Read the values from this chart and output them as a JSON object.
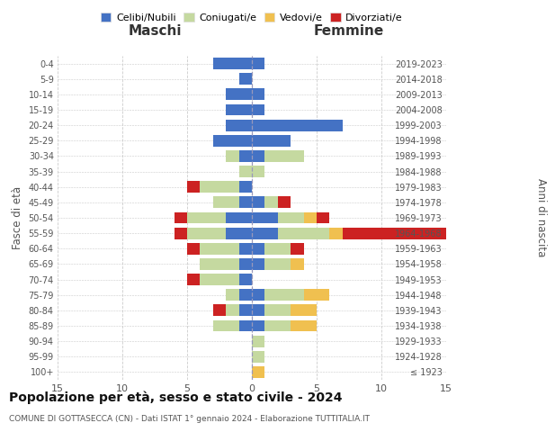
{
  "age_groups": [
    "100+",
    "95-99",
    "90-94",
    "85-89",
    "80-84",
    "75-79",
    "70-74",
    "65-69",
    "60-64",
    "55-59",
    "50-54",
    "45-49",
    "40-44",
    "35-39",
    "30-34",
    "25-29",
    "20-24",
    "15-19",
    "10-14",
    "5-9",
    "0-4"
  ],
  "birth_years": [
    "≤ 1923",
    "1924-1928",
    "1929-1933",
    "1934-1938",
    "1939-1943",
    "1944-1948",
    "1949-1953",
    "1954-1958",
    "1959-1963",
    "1964-1968",
    "1969-1973",
    "1974-1978",
    "1979-1983",
    "1984-1988",
    "1989-1993",
    "1994-1998",
    "1999-2003",
    "2004-2008",
    "2009-2013",
    "2014-2018",
    "2019-2023"
  ],
  "colors": {
    "celibi": "#4472c4",
    "coniugati": "#c5d9a0",
    "vedovi": "#f0c050",
    "divorziati": "#cc2222"
  },
  "maschi": {
    "celibi": [
      0,
      0,
      0,
      1,
      1,
      1,
      1,
      1,
      1,
      2,
      2,
      1,
      1,
      0,
      1,
      3,
      2,
      2,
      2,
      1,
      3
    ],
    "coniugati": [
      0,
      0,
      0,
      2,
      1,
      1,
      3,
      3,
      3,
      3,
      3,
      2,
      3,
      1,
      1,
      0,
      0,
      0,
      0,
      0,
      0
    ],
    "vedovi": [
      0,
      0,
      0,
      0,
      0,
      0,
      0,
      0,
      0,
      0,
      0,
      0,
      0,
      0,
      0,
      0,
      0,
      0,
      0,
      0,
      0
    ],
    "divorziati": [
      0,
      0,
      0,
      0,
      1,
      0,
      1,
      0,
      1,
      1,
      1,
      0,
      1,
      0,
      0,
      0,
      0,
      0,
      0,
      0,
      0
    ]
  },
  "femmine": {
    "celibi": [
      0,
      0,
      0,
      1,
      1,
      1,
      0,
      1,
      1,
      2,
      2,
      1,
      0,
      0,
      1,
      3,
      7,
      1,
      1,
      0,
      1
    ],
    "coniugati": [
      0,
      1,
      1,
      2,
      2,
      3,
      0,
      2,
      2,
      4,
      2,
      1,
      0,
      1,
      3,
      0,
      0,
      0,
      0,
      0,
      0
    ],
    "vedovi": [
      1,
      0,
      0,
      2,
      2,
      2,
      0,
      1,
      0,
      1,
      1,
      0,
      0,
      0,
      0,
      0,
      0,
      0,
      0,
      0,
      0
    ],
    "divorziati": [
      0,
      0,
      0,
      0,
      0,
      0,
      0,
      0,
      1,
      10,
      1,
      1,
      0,
      0,
      0,
      0,
      0,
      0,
      0,
      0,
      0
    ]
  },
  "xlim": 15,
  "title": "Popolazione per età, sesso e stato civile - 2024",
  "subtitle": "COMUNE DI GOTTASECCA (CN) - Dati ISTAT 1° gennaio 2024 - Elaborazione TUTTITALIA.IT",
  "ylabel_left": "Fasce di età",
  "ylabel_right": "Anni di nascita",
  "xlabel_left": "Maschi",
  "xlabel_right": "Femmine",
  "legend_labels": [
    "Celibi/Nubili",
    "Coniugati/e",
    "Vedovi/e",
    "Divorziati/e"
  ],
  "background_color": "#ffffff",
  "grid_color": "#cccccc"
}
